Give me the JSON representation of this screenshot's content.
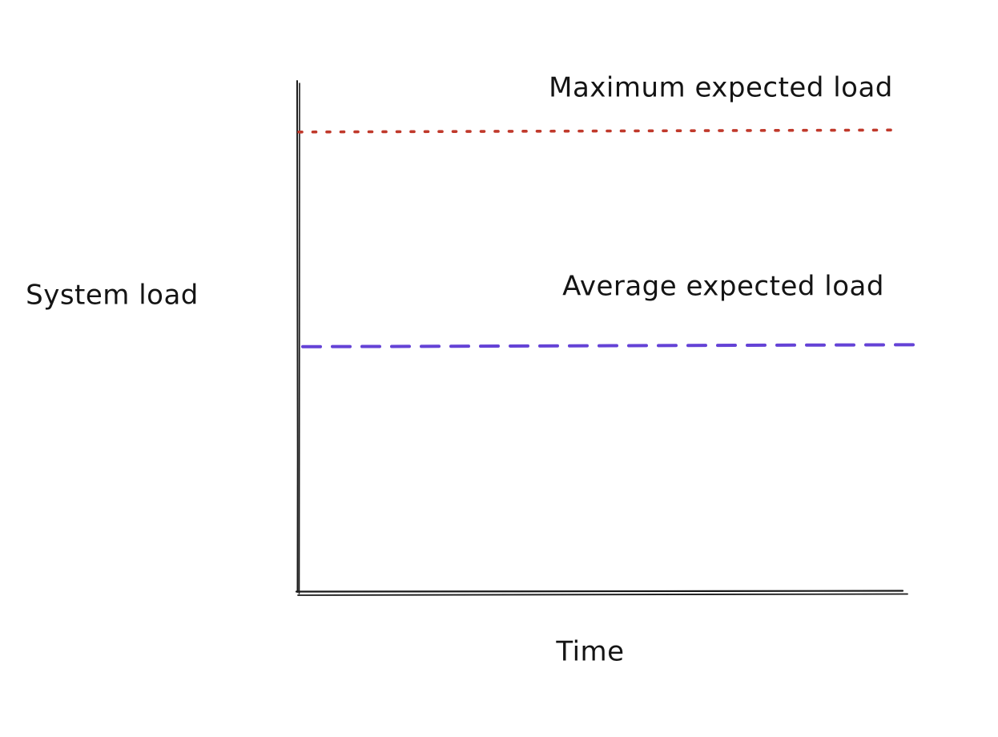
{
  "page": {
    "background": "#ffffff"
  },
  "labels": {
    "y_axis": "System load",
    "x_axis": "Time",
    "max_line": "Maximum expected load",
    "avg_line": "Average expected load"
  },
  "colors": {
    "axis": "#1a1a1a",
    "text": "#141414",
    "max_line": "#c0392b",
    "avg_line": "#6442d6"
  },
  "chart_data": {
    "type": "line",
    "style": "hand-drawn-sketch",
    "title": "",
    "xlabel": "Time",
    "ylabel": "System load",
    "x_tick_labels": [],
    "y_tick_labels": [],
    "grid": false,
    "legend": "none",
    "series": [],
    "reference_lines": [
      {
        "label": "Maximum expected load",
        "orientation": "horizontal",
        "line_style": "dotted",
        "color": "#c0392b",
        "y_fraction_of_axis": 0.9
      },
      {
        "label": "Average expected load",
        "orientation": "horizontal",
        "line_style": "dashed",
        "color": "#6442d6",
        "y_fraction_of_axis": 0.48
      }
    ]
  }
}
